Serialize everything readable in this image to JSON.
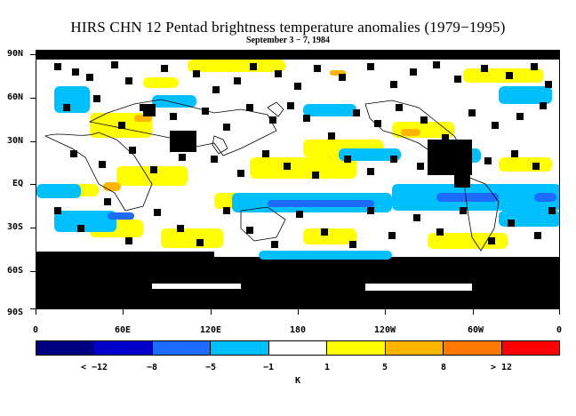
{
  "title": "HIRS CHN 12 Pentad brightness temperature anomalies (1979−1995)",
  "subtitle": "September 3 − 7, 1984",
  "y_axis_labels": [
    "90N",
    "60N",
    "30N",
    "EQ",
    "30S",
    "60S",
    "90S"
  ],
  "x_axis_labels": [
    "0",
    "60E",
    "120E",
    "180",
    "120W",
    "60W",
    "0"
  ],
  "colorbar": {
    "colors": [
      "#000080",
      "#0000cd",
      "#1e6cff",
      "#00bfff",
      "#ffffff",
      "#ffff00",
      "#ffb400",
      "#ff7800",
      "#ff0000"
    ],
    "labels": [
      "< −12",
      "−8",
      "−5",
      "−1",
      "1",
      "5",
      "8",
      "> 12"
    ],
    "units": "K"
  },
  "map_colors": {
    "missing": "#000000",
    "cool": "#00bfff",
    "cold": "#1e6cff",
    "warm": "#ffff00",
    "hot": "#ffb400",
    "coast": "#000000"
  }
}
